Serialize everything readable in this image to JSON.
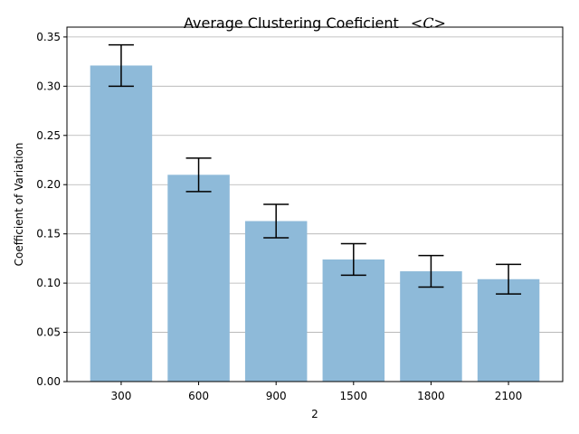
{
  "chart_data": {
    "type": "bar",
    "title": "Average Clustering Coeficient",
    "title_math": "<C>",
    "xlabel": "2",
    "ylabel": "Coefficient of Variation",
    "categories": [
      "300",
      "600",
      "900",
      "1500",
      "1800",
      "2100"
    ],
    "values": [
      0.321,
      0.21,
      0.163,
      0.124,
      0.112,
      0.104
    ],
    "errors": [
      0.021,
      0.017,
      0.017,
      0.016,
      0.016,
      0.015
    ],
    "ylim": [
      0,
      0.36
    ],
    "yticks": [
      "0.00",
      "0.05",
      "0.10",
      "0.15",
      "0.20",
      "0.25",
      "0.30",
      "0.35"
    ],
    "grid": "y",
    "bar_color": "#8ebad9",
    "error_color": "#000000"
  }
}
